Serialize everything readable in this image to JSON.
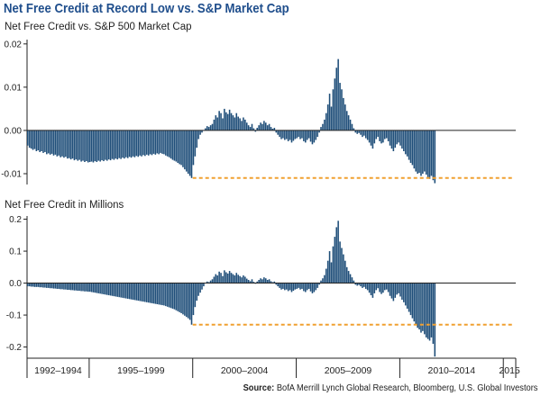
{
  "title": "Net Free Credit at Record Low vs. S&P Market Cap",
  "source": {
    "label": "Source:",
    "text": "BofA Merrill Lynch Global Research, Bloomberg, U.S. Global Investors"
  },
  "colors": {
    "bar": "#1f4e79",
    "reference_line": "#f0a030",
    "axis": "#222222",
    "text": "#222222"
  },
  "x_axis": {
    "periods": [
      {
        "label": "1992–1994",
        "start": 1992,
        "end": 1995
      },
      {
        "label": "1995–1999",
        "start": 1995,
        "end": 2000
      },
      {
        "label": "2000–2004",
        "start": 2000,
        "end": 2005
      },
      {
        "label": "2005–2009",
        "start": 2005,
        "end": 2010
      },
      {
        "label": "2010–2014",
        "start": 2010,
        "end": 2015
      },
      {
        "label": "2015",
        "start": 2015,
        "end": 2015.6
      }
    ],
    "range": [
      1992,
      2015.6
    ]
  },
  "chart_data": [
    {
      "type": "bar",
      "title": "Net Free Credit vs. S&P 500 Market Cap",
      "ylim": [
        -0.0125,
        0.021
      ],
      "yticks": [
        -0.01,
        0,
        0.01,
        0.02
      ],
      "ytick_labels": [
        "-0.01",
        "0.00",
        "0.01",
        "0.02"
      ],
      "reference_line": {
        "y": -0.011,
        "x_start": 2000,
        "x_end": 2015.5,
        "style": "dashed"
      },
      "x_start": 1992.0,
      "x_step": 0.0833,
      "values": [
        -0.0035,
        -0.004,
        -0.0042,
        -0.0045,
        -0.0043,
        -0.0048,
        -0.0046,
        -0.005,
        -0.0048,
        -0.0052,
        -0.005,
        -0.0055,
        -0.0053,
        -0.0056,
        -0.0054,
        -0.0058,
        -0.0056,
        -0.006,
        -0.0058,
        -0.0062,
        -0.006,
        -0.0063,
        -0.0061,
        -0.0065,
        -0.0064,
        -0.0067,
        -0.0065,
        -0.0069,
        -0.0067,
        -0.007,
        -0.0068,
        -0.0072,
        -0.007,
        -0.0073,
        -0.0071,
        -0.0074,
        -0.0073,
        -0.0072,
        -0.0074,
        -0.0071,
        -0.0073,
        -0.007,
        -0.0072,
        -0.0069,
        -0.0071,
        -0.0068,
        -0.007,
        -0.0067,
        -0.0069,
        -0.0066,
        -0.0068,
        -0.0065,
        -0.0067,
        -0.0064,
        -0.0066,
        -0.0063,
        -0.0065,
        -0.0062,
        -0.0064,
        -0.0061,
        -0.0063,
        -0.006,
        -0.0062,
        -0.0059,
        -0.0061,
        -0.0058,
        -0.006,
        -0.0057,
        -0.0059,
        -0.0056,
        -0.0058,
        -0.0055,
        -0.0057,
        -0.0054,
        -0.0056,
        -0.0053,
        -0.0055,
        -0.0052,
        -0.0054,
        -0.0055,
        -0.0058,
        -0.006,
        -0.0062,
        -0.0065,
        -0.0068,
        -0.007,
        -0.0072,
        -0.0075,
        -0.0078,
        -0.008,
        -0.0085,
        -0.009,
        -0.0095,
        -0.01,
        -0.0105,
        -0.011,
        -0.008,
        -0.006,
        -0.004,
        -0.002,
        -0.001,
        -0.0005,
        0,
        0.0005,
        0.001,
        0.0008,
        0.0012,
        0.0015,
        0.0025,
        0.0035,
        0.003,
        0.0045,
        0.004,
        0.0028,
        0.005,
        0.0042,
        0.0038,
        0.0048,
        0.004,
        0.0035,
        0.003,
        0.004,
        0.0032,
        0.0028,
        0.0022,
        0.003,
        0.0025,
        0.0018,
        0.0012,
        0.0008,
        0.0015,
        0.0005,
        -0.0003,
        0.0006,
        0.0012,
        0.0018,
        0.0015,
        0.0022,
        0.0018,
        0.0012,
        0.0015,
        0.0008,
        0.0004,
        0.0006,
        -0.0005,
        -0.001,
        -0.0015,
        -0.002,
        -0.0018,
        -0.0022,
        -0.002,
        -0.0025,
        -0.0022,
        -0.0028,
        -0.0024,
        -0.002,
        -0.0018,
        -0.0015,
        -0.002,
        -0.0018,
        -0.0025,
        -0.0028,
        -0.0022,
        -0.0018,
        -0.0026,
        -0.0032,
        -0.0028,
        -0.0022,
        -0.0015,
        -0.0005,
        0.0008,
        0.0015,
        0.0025,
        0.004,
        0.006,
        0.0085,
        0.0055,
        0.0095,
        0.012,
        0.0145,
        0.0165,
        0.011,
        0.0095,
        0.0075,
        0.006,
        0.0045,
        0.0035,
        0.0025,
        0.0015,
        0.0005,
        -0.0005,
        -0.0008,
        -0.0006,
        -0.001,
        -0.0015,
        -0.0012,
        -0.0018,
        -0.0022,
        -0.0028,
        -0.0035,
        -0.0042,
        -0.003,
        -0.002,
        -0.0015,
        -0.0025,
        -0.003,
        -0.0028,
        -0.002,
        -0.0018,
        -0.0025,
        -0.0035,
        -0.0042,
        -0.0048,
        -0.004,
        -0.0032,
        -0.0028,
        -0.0035,
        -0.0042,
        -0.0048,
        -0.0055,
        -0.006,
        -0.0068,
        -0.0075,
        -0.008,
        -0.0088,
        -0.0095,
        -0.01,
        -0.0098,
        -0.0105,
        -0.01,
        -0.0095,
        -0.0102,
        -0.0108,
        -0.0112,
        -0.0105,
        -0.0115,
        -0.0122
      ]
    },
    {
      "type": "bar",
      "title": "Net Free Credit in Millions",
      "ylim": [
        -0.235,
        0.21
      ],
      "yticks": [
        -0.2,
        -0.1,
        0,
        0.1,
        0.2
      ],
      "ytick_labels": [
        "-0.2",
        "-0.1",
        "0.0",
        "0.1",
        "0.2"
      ],
      "reference_line": {
        "y": -0.13,
        "x_start": 2000,
        "x_end": 2015.5,
        "style": "dashed"
      },
      "x_start": 1992.0,
      "x_step": 0.0833,
      "values": [
        -0.01,
        -0.01,
        -0.011,
        -0.011,
        -0.012,
        -0.012,
        -0.012,
        -0.013,
        -0.013,
        -0.014,
        -0.014,
        -0.015,
        -0.015,
        -0.016,
        -0.016,
        -0.017,
        -0.017,
        -0.018,
        -0.018,
        -0.019,
        -0.019,
        -0.02,
        -0.02,
        -0.021,
        -0.021,
        -0.022,
        -0.022,
        -0.023,
        -0.023,
        -0.024,
        -0.024,
        -0.025,
        -0.025,
        -0.026,
        -0.026,
        -0.027,
        -0.027,
        -0.028,
        -0.029,
        -0.03,
        -0.031,
        -0.032,
        -0.033,
        -0.034,
        -0.035,
        -0.036,
        -0.037,
        -0.038,
        -0.039,
        -0.04,
        -0.041,
        -0.042,
        -0.043,
        -0.044,
        -0.045,
        -0.046,
        -0.047,
        -0.048,
        -0.049,
        -0.05,
        -0.051,
        -0.052,
        -0.053,
        -0.054,
        -0.055,
        -0.056,
        -0.057,
        -0.058,
        -0.059,
        -0.06,
        -0.061,
        -0.062,
        -0.063,
        -0.064,
        -0.065,
        -0.066,
        -0.067,
        -0.068,
        -0.069,
        -0.07,
        -0.072,
        -0.074,
        -0.076,
        -0.078,
        -0.08,
        -0.082,
        -0.085,
        -0.088,
        -0.091,
        -0.094,
        -0.098,
        -0.102,
        -0.106,
        -0.11,
        -0.115,
        -0.13,
        -0.1,
        -0.075,
        -0.055,
        -0.04,
        -0.03,
        -0.02,
        -0.01,
        0,
        0.005,
        0.003,
        0.008,
        0.012,
        0.02,
        0.028,
        0.024,
        0.036,
        0.032,
        0.022,
        0.04,
        0.034,
        0.03,
        0.038,
        0.032,
        0.028,
        0.024,
        0.032,
        0.026,
        0.022,
        0.018,
        0.024,
        0.02,
        0.014,
        0.01,
        0.006,
        0.012,
        0.004,
        -0.002,
        0.005,
        0.01,
        0.015,
        0.012,
        0.018,
        0.015,
        0.01,
        0.012,
        0.006,
        0.003,
        0.005,
        -0.005,
        -0.01,
        -0.015,
        -0.02,
        -0.018,
        -0.022,
        -0.02,
        -0.025,
        -0.022,
        -0.028,
        -0.024,
        -0.02,
        -0.018,
        -0.015,
        -0.02,
        -0.018,
        -0.025,
        -0.028,
        -0.022,
        -0.018,
        -0.026,
        -0.032,
        -0.028,
        -0.022,
        -0.015,
        -0.005,
        0.008,
        0.015,
        0.025,
        0.045,
        0.07,
        0.1,
        0.065,
        0.115,
        0.145,
        0.175,
        0.195,
        0.13,
        0.11,
        0.09,
        0.07,
        0.05,
        0.038,
        0.028,
        0.018,
        0.008,
        -0.005,
        -0.008,
        -0.006,
        -0.01,
        -0.015,
        -0.012,
        -0.018,
        -0.022,
        -0.03,
        -0.038,
        -0.046,
        -0.032,
        -0.022,
        -0.016,
        -0.028,
        -0.034,
        -0.03,
        -0.022,
        -0.02,
        -0.028,
        -0.04,
        -0.048,
        -0.056,
        -0.046,
        -0.036,
        -0.032,
        -0.042,
        -0.052,
        -0.06,
        -0.07,
        -0.08,
        -0.09,
        -0.1,
        -0.11,
        -0.12,
        -0.13,
        -0.14,
        -0.145,
        -0.155,
        -0.15,
        -0.16,
        -0.17,
        -0.175,
        -0.18,
        -0.17,
        -0.19,
        -0.23
      ]
    }
  ]
}
